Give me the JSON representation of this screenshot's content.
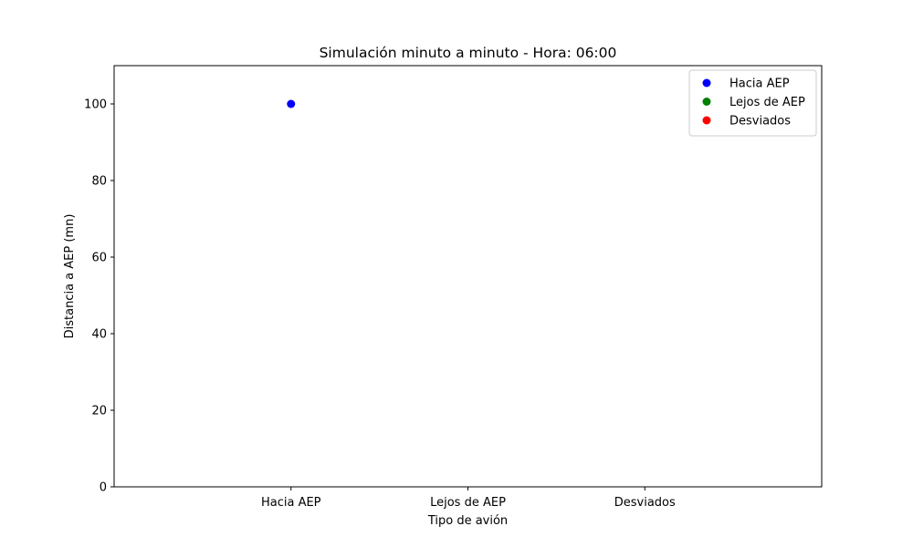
{
  "chart_data": {
    "type": "scatter",
    "title": "Simulación minuto a minuto - Hora: 06:00",
    "xlabel": "Tipo de avión",
    "ylabel": "Distancia a AEP (mn)",
    "categories": [
      "Hacia AEP",
      "Lejos de AEP",
      "Desviados"
    ],
    "xlim": [
      -1,
      3
    ],
    "ylim": [
      0,
      110
    ],
    "yticks": [
      0,
      20,
      40,
      60,
      80,
      100
    ],
    "grid": false,
    "legend_position": "top-right",
    "series": [
      {
        "name": "Hacia AEP",
        "color": "#0000ff",
        "points": [
          {
            "x": "Hacia AEP",
            "y": 100
          }
        ]
      },
      {
        "name": "Lejos de AEP",
        "color": "#008000",
        "points": []
      },
      {
        "name": "Desviados",
        "color": "#ff0000",
        "points": []
      }
    ]
  }
}
